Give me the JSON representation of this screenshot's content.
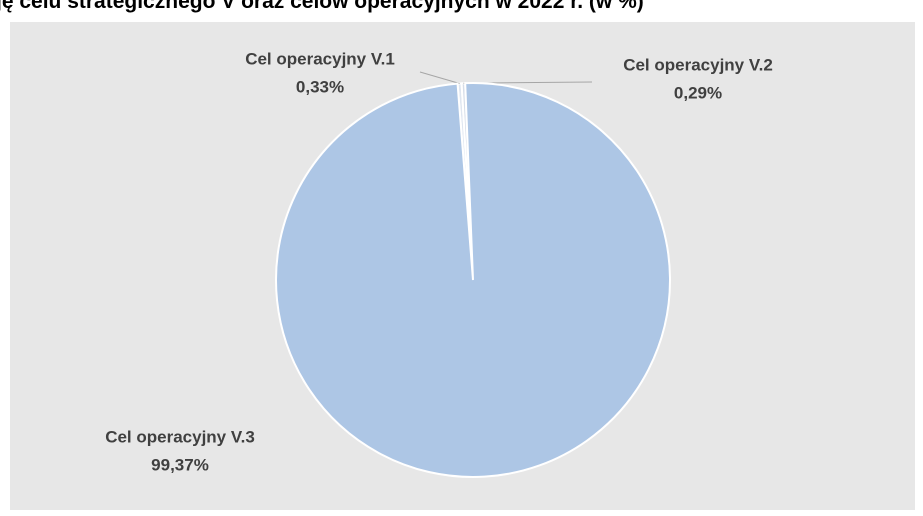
{
  "chart_data": {
    "type": "pie",
    "title": "ję celu strategicznego V oraz celów operacyjnych w 2022 r. (w %)",
    "categories": [
      "Cel operacyjny V.1",
      "Cel operacyjny V.2",
      "Cel operacyjny V.3"
    ],
    "values": [
      0.33,
      0.29,
      99.37
    ],
    "value_labels": [
      "0,33%",
      "0,29%",
      "99,37%"
    ],
    "colors": [
      "#dfe6f0",
      "#d6dde8",
      "#adc6e5"
    ]
  }
}
